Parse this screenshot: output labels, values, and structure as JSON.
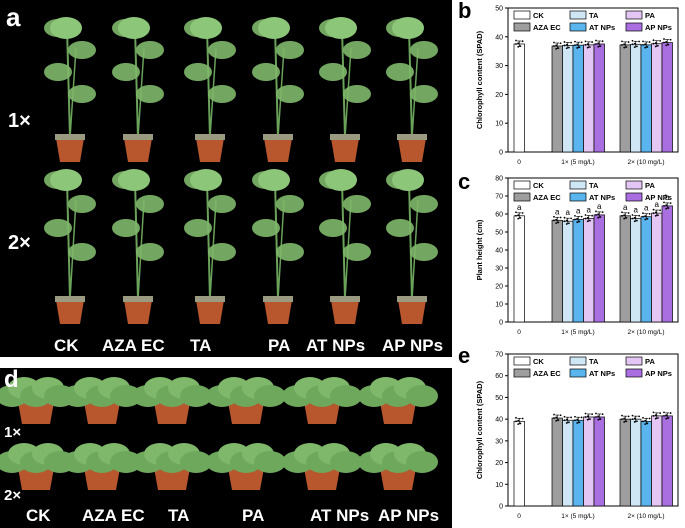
{
  "panels": {
    "a": {
      "letter": "a",
      "row_labels": [
        "1×",
        "2×"
      ],
      "group_labels": [
        "CK",
        "AZA EC",
        "TA",
        "PA",
        "AT NPs",
        "AP NPs"
      ]
    },
    "d": {
      "letter": "d",
      "row_labels": [
        "1×",
        "2×"
      ],
      "group_labels": [
        "CK",
        "AZA EC",
        "TA",
        "PA",
        "AT NPs",
        "AP NPs"
      ]
    }
  },
  "legend": [
    "CK",
    "AZA EC",
    "TA",
    "AT NPs",
    "PA",
    "AP NPs"
  ],
  "colors": {
    "CK": "#ffffff",
    "AZA EC": "#9e9e9e",
    "TA": "#cfe6f5",
    "AT NPs": "#5ab4ee",
    "PA": "#e3c6f3",
    "AP NPs": "#a96fe0",
    "plant": "#7fb86a",
    "pot": "#b8562e"
  },
  "chart_data": [
    {
      "panel": "b",
      "type": "bar",
      "ylabel": "Chlorophyll content (SPAD)",
      "ylim": [
        0,
        50
      ],
      "yticks": [
        0,
        10,
        20,
        30,
        40,
        50
      ],
      "groups": [
        "0",
        "1× (5 mg/L)",
        "2× (10 mg/L)"
      ],
      "series": [
        {
          "name": "CK",
          "values": [
            37.5,
            null,
            null
          ]
        },
        {
          "name": "AZA EC",
          "values": [
            null,
            36.8,
            37.2
          ]
        },
        {
          "name": "TA",
          "values": [
            null,
            37.0,
            37.4
          ]
        },
        {
          "name": "AT NPs",
          "values": [
            null,
            37.1,
            37.2
          ]
        },
        {
          "name": "PA",
          "values": [
            null,
            37.2,
            37.6
          ]
        },
        {
          "name": "AP NPs",
          "values": [
            null,
            37.5,
            38.0
          ]
        }
      ],
      "letters": []
    },
    {
      "panel": "c",
      "type": "bar",
      "ylabel": "Plant height (cm)",
      "ylim": [
        0,
        80
      ],
      "yticks": [
        0,
        10,
        20,
        30,
        40,
        50,
        60,
        70,
        80
      ],
      "groups": [
        "0",
        "1× (5 mg/L)",
        "2× (10 mg/L)"
      ],
      "series": [
        {
          "name": "CK",
          "values": [
            59.0,
            null,
            null
          ]
        },
        {
          "name": "AZA EC",
          "values": [
            null,
            56.5,
            59.0
          ]
        },
        {
          "name": "TA",
          "values": [
            null,
            56.0,
            57.5
          ]
        },
        {
          "name": "AT NPs",
          "values": [
            null,
            57.0,
            58.5
          ]
        },
        {
          "name": "PA",
          "values": [
            null,
            57.5,
            60.5
          ]
        },
        {
          "name": "AP NPs",
          "values": [
            null,
            59.5,
            64.5
          ]
        }
      ],
      "letters": [
        [
          "a",
          null,
          null
        ],
        [
          null,
          "a",
          "a"
        ],
        [
          null,
          "a",
          "a"
        ],
        [
          null,
          "a",
          "a"
        ],
        [
          null,
          "a",
          "a"
        ],
        [
          null,
          "a",
          "b"
        ]
      ]
    },
    {
      "panel": "e",
      "type": "bar",
      "ylabel": "Chlorophyll content (SPAD)",
      "ylim": [
        0,
        70
      ],
      "yticks": [
        0,
        10,
        20,
        30,
        40,
        50,
        60,
        70
      ],
      "groups": [
        "0",
        "1× (5 mg/L)",
        "2× (10 mg/L)"
      ],
      "series": [
        {
          "name": "CK",
          "values": [
            39.0,
            null,
            null
          ]
        },
        {
          "name": "AZA EC",
          "values": [
            null,
            40.5,
            40.0
          ]
        },
        {
          "name": "TA",
          "values": [
            null,
            39.5,
            40.0
          ]
        },
        {
          "name": "AT NPs",
          "values": [
            null,
            39.5,
            39.0
          ]
        },
        {
          "name": "PA",
          "values": [
            null,
            41.0,
            41.5
          ]
        },
        {
          "name": "AP NPs",
          "values": [
            null,
            41.0,
            41.5
          ]
        }
      ],
      "letters": []
    }
  ]
}
